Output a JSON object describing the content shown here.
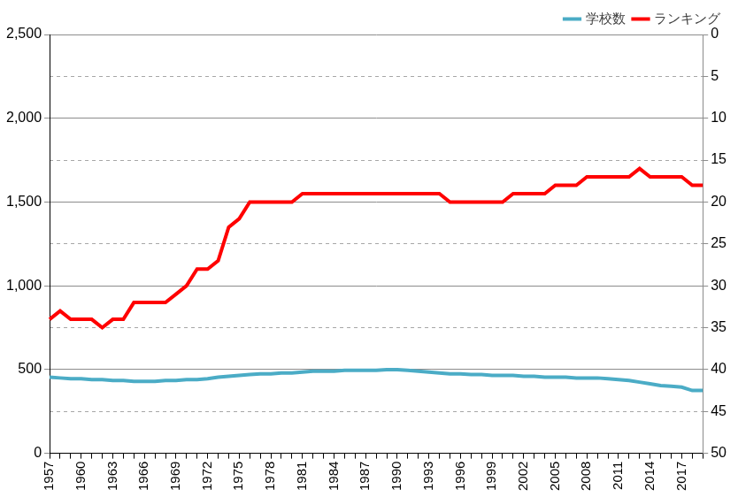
{
  "chart_data": {
    "type": "line",
    "categories": [
      "1957",
      null,
      null,
      "1960",
      null,
      null,
      "1963",
      null,
      null,
      "1966",
      null,
      null,
      "1969",
      null,
      null,
      "1972",
      null,
      null,
      "1975",
      null,
      null,
      "1978",
      null,
      null,
      "1981",
      null,
      null,
      "1984",
      null,
      null,
      "1987",
      null,
      null,
      "1990",
      null,
      null,
      "1993",
      null,
      null,
      "1996",
      null,
      null,
      "1999",
      null,
      null,
      "2002",
      null,
      null,
      "2005",
      null,
      null,
      "2008",
      null,
      null,
      "2011",
      null,
      null,
      "2014",
      null,
      null,
      "2017",
      null,
      null
    ],
    "series": [
      {
        "name": "学校数",
        "color": "#4bacc6",
        "axis": "y",
        "values": [
          455,
          450,
          445,
          445,
          440,
          440,
          435,
          435,
          430,
          430,
          430,
          435,
          435,
          440,
          440,
          445,
          455,
          460,
          465,
          470,
          475,
          475,
          480,
          480,
          485,
          490,
          490,
          490,
          495,
          495,
          495,
          495,
          500,
          500,
          495,
          490,
          485,
          480,
          475,
          475,
          470,
          470,
          465,
          465,
          465,
          460,
          460,
          455,
          455,
          455,
          450,
          450,
          450,
          445,
          440,
          435,
          425,
          415,
          405,
          400,
          395,
          375,
          375
        ]
      },
      {
        "name": "ランキング",
        "color": "#ff0000",
        "axis": "y2",
        "values": [
          34,
          33,
          34,
          34,
          34,
          35,
          34,
          34,
          32,
          32,
          32,
          32,
          31,
          30,
          28,
          28,
          27,
          23,
          22,
          20,
          20,
          20,
          20,
          20,
          19,
          19,
          19,
          19,
          19,
          19,
          19,
          19,
          19,
          19,
          19,
          19,
          19,
          19,
          20,
          20,
          20,
          20,
          20,
          20,
          19,
          19,
          19,
          19,
          18,
          18,
          18,
          17,
          17,
          17,
          17,
          17,
          16,
          17,
          17,
          17,
          17,
          18,
          18
        ]
      }
    ],
    "ylim": [
      0,
      2500
    ],
    "yticks": [
      0,
      500,
      {
        "value": 1000,
        "label": "1,000"
      },
      {
        "value": 1500,
        "label": "1,500"
      },
      {
        "value": 2000,
        "label": "2,000"
      },
      {
        "value": 2500,
        "label": "2,500"
      }
    ],
    "y2lim": [
      50,
      0
    ],
    "y2ticks": [
      0,
      5,
      10,
      15,
      20,
      25,
      30,
      35,
      40,
      45,
      50
    ],
    "grid": true,
    "legend": "upper right"
  }
}
